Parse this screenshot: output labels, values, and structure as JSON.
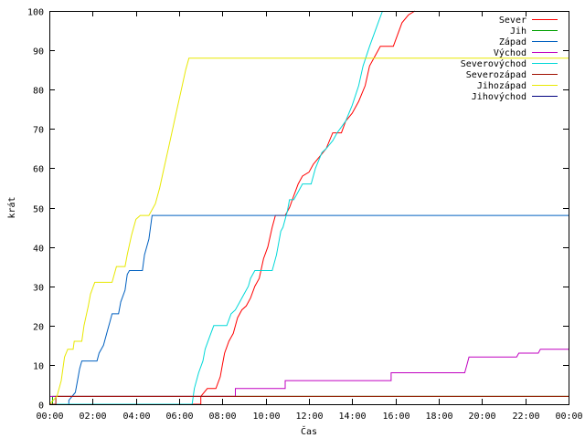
{
  "chart_data": {
    "type": "line",
    "title": "",
    "xlabel": "Čas",
    "ylabel": "krát",
    "xlim": [
      0,
      24
    ],
    "ylim": [
      0,
      100
    ],
    "grid": false,
    "legend_position": "top-right",
    "x_ticks": [
      "00:00",
      "02:00",
      "04:00",
      "06:00",
      "08:00",
      "10:00",
      "12:00",
      "14:00",
      "16:00",
      "18:00",
      "20:00",
      "22:00",
      "00:00"
    ],
    "y_ticks": [
      "0",
      "10",
      "20",
      "30",
      "40",
      "50",
      "60",
      "70",
      "80",
      "90",
      "100"
    ],
    "series": [
      {
        "name": "Sever",
        "color": "#ff0000",
        "points": [
          [
            0,
            0
          ],
          [
            7.0,
            0
          ],
          [
            7.0,
            2
          ],
          [
            7.3,
            4
          ],
          [
            7.7,
            4
          ],
          [
            7.9,
            7
          ],
          [
            8.0,
            10
          ],
          [
            8.1,
            13
          ],
          [
            8.3,
            16
          ],
          [
            8.5,
            18
          ],
          [
            8.7,
            22
          ],
          [
            8.9,
            24
          ],
          [
            9.1,
            25
          ],
          [
            9.3,
            27
          ],
          [
            9.5,
            30
          ],
          [
            9.7,
            32
          ],
          [
            9.9,
            37
          ],
          [
            10.1,
            40
          ],
          [
            10.3,
            45
          ],
          [
            10.45,
            48
          ],
          [
            10.9,
            48
          ],
          [
            11.1,
            50
          ],
          [
            11.3,
            53
          ],
          [
            11.5,
            56
          ],
          [
            11.7,
            58
          ],
          [
            12.0,
            59
          ],
          [
            12.2,
            61
          ],
          [
            12.5,
            63
          ],
          [
            12.8,
            65
          ],
          [
            13.1,
            69
          ],
          [
            13.5,
            69
          ],
          [
            13.7,
            72
          ],
          [
            14.0,
            74
          ],
          [
            14.3,
            77
          ],
          [
            14.6,
            81
          ],
          [
            14.8,
            86
          ],
          [
            15.0,
            88
          ],
          [
            15.3,
            91
          ],
          [
            15.9,
            91
          ],
          [
            16.1,
            94
          ],
          [
            16.3,
            97
          ],
          [
            16.6,
            99
          ],
          [
            16.9,
            100
          ]
        ]
      },
      {
        "name": "Jih",
        "color": "#00a000",
        "points": [
          [
            0,
            0
          ],
          [
            0.15,
            0
          ],
          [
            0.15,
            2
          ],
          [
            24,
            2
          ]
        ]
      },
      {
        "name": "Západ",
        "color": "#0060c0",
        "points": [
          [
            0,
            0
          ],
          [
            0.9,
            0
          ],
          [
            0.9,
            1
          ],
          [
            1.2,
            3
          ],
          [
            1.3,
            6
          ],
          [
            1.4,
            9
          ],
          [
            1.5,
            11
          ],
          [
            2.2,
            11
          ],
          [
            2.3,
            13
          ],
          [
            2.5,
            15
          ],
          [
            2.7,
            19
          ],
          [
            2.8,
            21
          ],
          [
            2.9,
            23
          ],
          [
            3.2,
            23
          ],
          [
            3.3,
            26
          ],
          [
            3.5,
            29
          ],
          [
            3.6,
            33
          ],
          [
            3.7,
            34
          ],
          [
            4.3,
            34
          ],
          [
            4.4,
            38
          ],
          [
            4.6,
            42
          ],
          [
            4.75,
            48
          ],
          [
            24,
            48
          ]
        ]
      },
      {
        "name": "Východ",
        "color": "#c000c0",
        "points": [
          [
            0,
            2
          ],
          [
            8.6,
            2
          ],
          [
            8.6,
            4
          ],
          [
            10.9,
            4
          ],
          [
            10.9,
            6
          ],
          [
            15.8,
            6
          ],
          [
            15.8,
            8
          ],
          [
            19.2,
            8
          ],
          [
            19.3,
            10
          ],
          [
            19.4,
            12
          ],
          [
            21.6,
            12
          ],
          [
            21.7,
            13
          ],
          [
            22.6,
            13
          ],
          [
            22.7,
            14
          ],
          [
            24,
            14
          ]
        ]
      },
      {
        "name": "Severovýchod",
        "color": "#00d8d8",
        "points": [
          [
            0,
            0
          ],
          [
            6.6,
            0
          ],
          [
            6.7,
            4
          ],
          [
            6.9,
            8
          ],
          [
            7.1,
            11
          ],
          [
            7.2,
            14
          ],
          [
            7.4,
            17
          ],
          [
            7.6,
            20
          ],
          [
            8.2,
            20
          ],
          [
            8.4,
            23
          ],
          [
            8.6,
            24
          ],
          [
            8.8,
            26
          ],
          [
            9.0,
            28
          ],
          [
            9.2,
            30
          ],
          [
            9.3,
            32
          ],
          [
            9.5,
            34
          ],
          [
            10.3,
            34
          ],
          [
            10.5,
            38
          ],
          [
            10.7,
            44
          ],
          [
            10.8,
            45
          ],
          [
            11.0,
            49
          ],
          [
            11.1,
            52
          ],
          [
            11.3,
            52
          ],
          [
            11.5,
            54
          ],
          [
            11.7,
            56
          ],
          [
            12.1,
            56
          ],
          [
            12.3,
            60
          ],
          [
            12.6,
            64
          ],
          [
            12.8,
            65
          ],
          [
            13.1,
            67
          ],
          [
            13.3,
            69
          ],
          [
            13.7,
            72
          ],
          [
            14.0,
            76
          ],
          [
            14.3,
            81
          ],
          [
            14.5,
            86
          ],
          [
            14.8,
            91
          ],
          [
            15.0,
            94
          ],
          [
            15.2,
            97
          ],
          [
            15.4,
            100
          ]
        ]
      },
      {
        "name": "Severozápad",
        "color": "#a01000",
        "points": [
          [
            0,
            0
          ],
          [
            0.3,
            0
          ],
          [
            0.3,
            2
          ],
          [
            24,
            2
          ]
        ]
      },
      {
        "name": "Jihozápad",
        "color": "#e8e800",
        "points": [
          [
            0,
            0
          ],
          [
            0.35,
            2
          ],
          [
            0.55,
            6
          ],
          [
            0.7,
            12
          ],
          [
            0.85,
            14
          ],
          [
            1.1,
            14
          ],
          [
            1.15,
            16
          ],
          [
            1.5,
            16
          ],
          [
            1.6,
            20
          ],
          [
            1.8,
            25
          ],
          [
            1.9,
            28
          ],
          [
            2.1,
            31
          ],
          [
            2.9,
            31
          ],
          [
            3.0,
            33
          ],
          [
            3.1,
            35
          ],
          [
            3.5,
            35
          ],
          [
            3.6,
            38
          ],
          [
            3.8,
            43
          ],
          [
            4.0,
            47
          ],
          [
            4.2,
            48
          ],
          [
            4.6,
            48
          ],
          [
            4.9,
            51
          ],
          [
            5.1,
            55
          ],
          [
            5.3,
            60
          ],
          [
            5.5,
            65
          ],
          [
            5.7,
            70
          ],
          [
            5.9,
            75
          ],
          [
            6.1,
            80
          ],
          [
            6.3,
            85
          ],
          [
            6.45,
            88
          ],
          [
            24,
            88
          ]
        ]
      },
      {
        "name": "Jihovýchod",
        "color": "#000080",
        "points": []
      }
    ]
  }
}
